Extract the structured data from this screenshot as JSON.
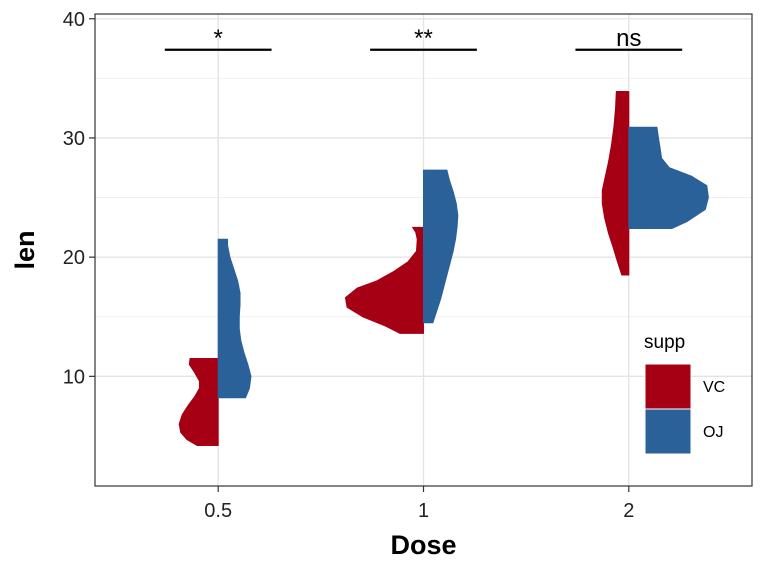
{
  "chart_data": {
    "type": "violin",
    "variant": "split-half-violin",
    "xlabel": "Dose",
    "ylabel": "len",
    "ylim": [
      0.8,
      40.4
    ],
    "y_ticks": [
      10,
      20,
      30,
      40
    ],
    "categories": [
      "0.5",
      "1",
      "2"
    ],
    "grid": true,
    "legend": {
      "title": "supp",
      "placement": "bottom-right-inside",
      "entries": [
        {
          "label": "VC",
          "color": "#A50013"
        },
        {
          "label": "OJ",
          "color": "#2B6199"
        }
      ]
    },
    "series": [
      {
        "name": "VC",
        "side": "left",
        "color": "#A50013",
        "violins": [
          {
            "category": "0.5",
            "min": 4.2,
            "max": 11.5,
            "profile": [
              [
                4.2,
                0.27
              ],
              [
                4.7,
                0.4
              ],
              [
                5.3,
                0.48
              ],
              [
                6.0,
                0.5
              ],
              [
                6.8,
                0.46
              ],
              [
                7.6,
                0.38
              ],
              [
                8.3,
                0.3
              ],
              [
                9.0,
                0.24
              ],
              [
                9.6,
                0.24
              ],
              [
                10.3,
                0.3
              ],
              [
                11.0,
                0.37
              ],
              [
                11.5,
                0.36
              ]
            ]
          },
          {
            "category": "1",
            "min": 13.6,
            "max": 22.5,
            "profile": [
              [
                13.6,
                0.3
              ],
              [
                14.2,
                0.48
              ],
              [
                15.0,
                0.78
              ],
              [
                15.8,
                0.98
              ],
              [
                16.6,
                1.0
              ],
              [
                17.4,
                0.85
              ],
              [
                18.0,
                0.6
              ],
              [
                18.8,
                0.38
              ],
              [
                19.6,
                0.2
              ],
              [
                20.5,
                0.09
              ],
              [
                21.5,
                0.08
              ],
              [
                22.1,
                0.1
              ],
              [
                22.5,
                0.14
              ]
            ]
          },
          {
            "category": "2",
            "min": 18.5,
            "max": 33.9,
            "profile": [
              [
                18.5,
                0.09
              ],
              [
                19.5,
                0.14
              ],
              [
                20.8,
                0.2
              ],
              [
                22.0,
                0.26
              ],
              [
                23.3,
                0.31
              ],
              [
                24.5,
                0.34
              ],
              [
                25.6,
                0.34
              ],
              [
                26.8,
                0.3
              ],
              [
                28.0,
                0.26
              ],
              [
                29.5,
                0.22
              ],
              [
                31.0,
                0.19
              ],
              [
                32.5,
                0.17
              ],
              [
                33.9,
                0.16
              ]
            ]
          }
        ]
      },
      {
        "name": "OJ",
        "side": "right",
        "color": "#2B6199",
        "violins": [
          {
            "category": "0.5",
            "min": 8.2,
            "max": 21.5,
            "profile": [
              [
                8.2,
                0.35
              ],
              [
                9.0,
                0.4
              ],
              [
                10.0,
                0.42
              ],
              [
                11.0,
                0.38
              ],
              [
                12.0,
                0.33
              ],
              [
                13.0,
                0.29
              ],
              [
                14.0,
                0.27
              ],
              [
                15.0,
                0.27
              ],
              [
                16.0,
                0.28
              ],
              [
                17.0,
                0.28
              ],
              [
                18.0,
                0.25
              ],
              [
                19.0,
                0.2
              ],
              [
                20.0,
                0.15
              ],
              [
                21.0,
                0.12
              ],
              [
                21.5,
                0.12
              ]
            ]
          },
          {
            "category": "1",
            "min": 14.5,
            "max": 27.3,
            "profile": [
              [
                14.5,
                0.12
              ],
              [
                15.5,
                0.17
              ],
              [
                16.5,
                0.22
              ],
              [
                17.5,
                0.26
              ],
              [
                18.5,
                0.3
              ],
              [
                19.5,
                0.34
              ],
              [
                20.5,
                0.38
              ],
              [
                21.5,
                0.41
              ],
              [
                22.5,
                0.43
              ],
              [
                23.5,
                0.44
              ],
              [
                24.5,
                0.42
              ],
              [
                25.5,
                0.38
              ],
              [
                26.5,
                0.33
              ],
              [
                27.3,
                0.3
              ]
            ]
          },
          {
            "category": "2",
            "min": 22.4,
            "max": 30.9,
            "profile": [
              [
                22.4,
                0.55
              ],
              [
                23.0,
                0.75
              ],
              [
                24.0,
                0.98
              ],
              [
                25.0,
                1.02
              ],
              [
                26.0,
                1.0
              ],
              [
                26.8,
                0.8
              ],
              [
                27.5,
                0.52
              ],
              [
                28.3,
                0.42
              ],
              [
                29.2,
                0.4
              ],
              [
                30.0,
                0.38
              ],
              [
                30.9,
                0.36
              ]
            ]
          }
        ]
      }
    ],
    "annotations": [
      {
        "category": "0.5",
        "label": "*",
        "y": 37.4,
        "half_width": 0.26
      },
      {
        "category": "1",
        "label": "**",
        "y": 37.4,
        "half_width": 0.26
      },
      {
        "category": "2",
        "label": "ns",
        "y": 37.4,
        "half_width": 0.26
      }
    ]
  }
}
